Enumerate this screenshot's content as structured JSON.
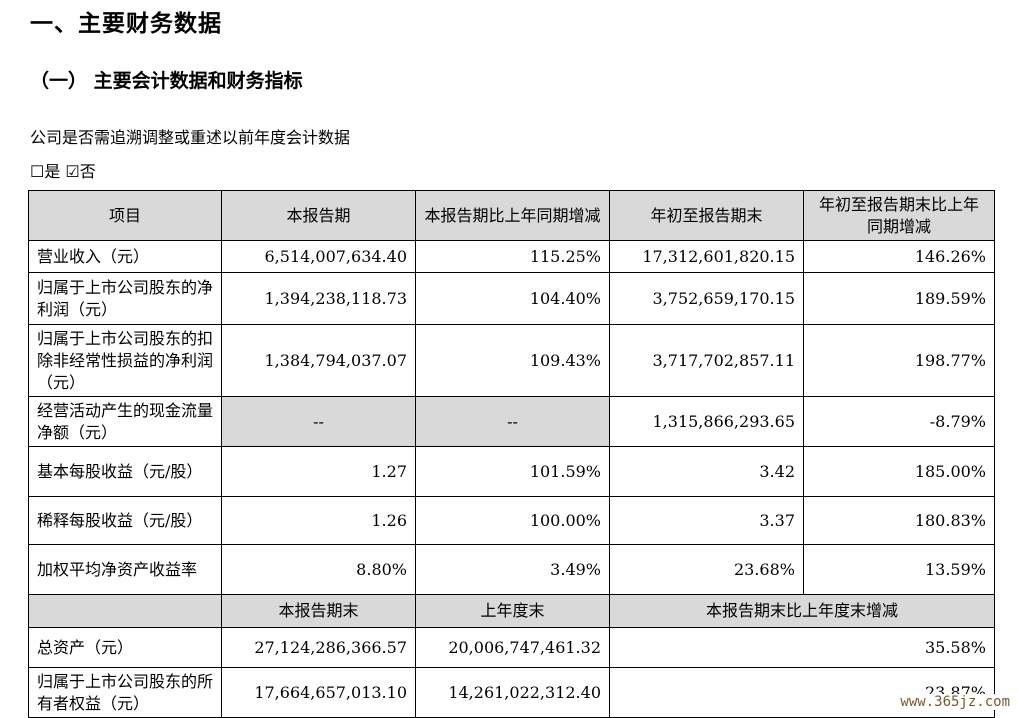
{
  "headings": {
    "h1": "一、主要财务数据",
    "h2": "（一） 主要会计数据和财务指标"
  },
  "note": "公司是否需追溯调整或重述以前年度会计数据",
  "choice": "☐是 ☑否",
  "table1": {
    "headers": [
      "项目",
      "本报告期",
      "本报告期比上年同期增减",
      "年初至报告期末",
      "年初至报告期末比上年同期增减"
    ],
    "rows": [
      {
        "item": "营业收入（元）",
        "current": "6,514,007,634.40",
        "yoy": "115.25%",
        "ytd": "17,312,601,820.15",
        "ytd_yoy": "146.26%"
      },
      {
        "item": "归属于上市公司股东的净利润（元）",
        "current": "1,394,238,118.73",
        "yoy": "104.40%",
        "ytd": "3,752,659,170.15",
        "ytd_yoy": "189.59%"
      },
      {
        "item": "归属于上市公司股东的扣除非经常性损益的净利润（元）",
        "current": "1,384,794,037.07",
        "yoy": "109.43%",
        "ytd": "3,717,702,857.11",
        "ytd_yoy": "198.77%"
      },
      {
        "item": "经营活动产生的现金流量净额（元）",
        "current": "--",
        "yoy": "--",
        "ytd": "1,315,866,293.65",
        "ytd_yoy": "-8.79%"
      },
      {
        "item": "基本每股收益（元/股）",
        "current": "1.27",
        "yoy": "101.59%",
        "ytd": "3.42",
        "ytd_yoy": "185.00%"
      },
      {
        "item": "稀释每股收益（元/股）",
        "current": "1.26",
        "yoy": "100.00%",
        "ytd": "3.37",
        "ytd_yoy": "180.83%"
      },
      {
        "item": "加权平均净资产收益率",
        "current": "8.80%",
        "yoy": "3.49%",
        "ytd": "23.68%",
        "ytd_yoy": "13.59%"
      }
    ]
  },
  "table2": {
    "headers": [
      "本报告期末",
      "上年度末",
      "本报告期末比上年度末增减"
    ],
    "rows": [
      {
        "item": "总资产（元）",
        "period_end": "27,124,286,366.57",
        "prev_year_end": "20,006,747,461.32",
        "change": "35.58%"
      },
      {
        "item": "归属于上市公司股东的所有者权益（元）",
        "period_end": "17,664,657,013.10",
        "prev_year_end": "14,261,022,312.40",
        "change": "23.87%"
      }
    ]
  },
  "watermark": "www.365jz.com"
}
